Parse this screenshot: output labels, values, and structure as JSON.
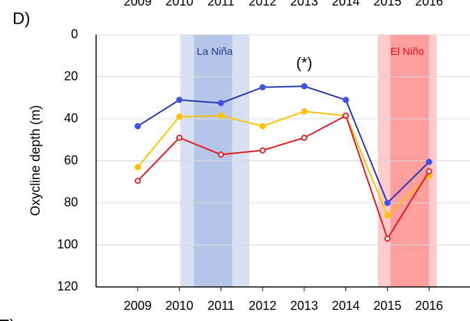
{
  "panel_label": "D)",
  "next_panel_label": "E)",
  "chart_data": {
    "type": "line",
    "y_label": "Oxycline depth (m)",
    "annotation": "(*)",
    "x": [
      2009,
      2010,
      2011,
      2012,
      2013,
      2014,
      2015,
      2016
    ],
    "xlim": [
      2008,
      2017
    ],
    "xticks": [
      2009,
      2010,
      2011,
      2012,
      2013,
      2014,
      2015,
      2016
    ],
    "ylim": [
      0,
      120
    ],
    "yticks": [
      0,
      20,
      40,
      60,
      80,
      100,
      120
    ],
    "y_inverted": true,
    "grid": true,
    "shaded_regions": [
      {
        "label": "La Niña",
        "color": "#d7dff2",
        "inner_color": "#b6c6e8",
        "label_color": "#1f3b8f",
        "range": [
          2010.02,
          2011.68
        ],
        "inner_range": [
          2010.35,
          2011.27
        ]
      },
      {
        "label": "El Niño",
        "color": "#ffcaca",
        "inner_color": "#ff9e9e",
        "label_color": "#e8141b",
        "range": [
          2014.77,
          2016.18
        ],
        "inner_range": [
          2015.07,
          2016.0
        ]
      }
    ],
    "series": [
      {
        "color": "#1f33b5",
        "marker_color": "#3f51e8",
        "hollow": false,
        "values": [
          43.5,
          31,
          32.5,
          25,
          24.5,
          31,
          80,
          60.5
        ]
      },
      {
        "color": "#ffc000",
        "marker_color": "#ffc000",
        "hollow": false,
        "values": [
          63,
          39,
          38.5,
          43.5,
          36.5,
          38.5,
          86,
          67
        ]
      },
      {
        "color": "#e8141b",
        "marker_color": "#e8141b",
        "hollow": true,
        "values": [
          69.5,
          49,
          57,
          55,
          49,
          38.5,
          97,
          65
        ]
      }
    ]
  }
}
